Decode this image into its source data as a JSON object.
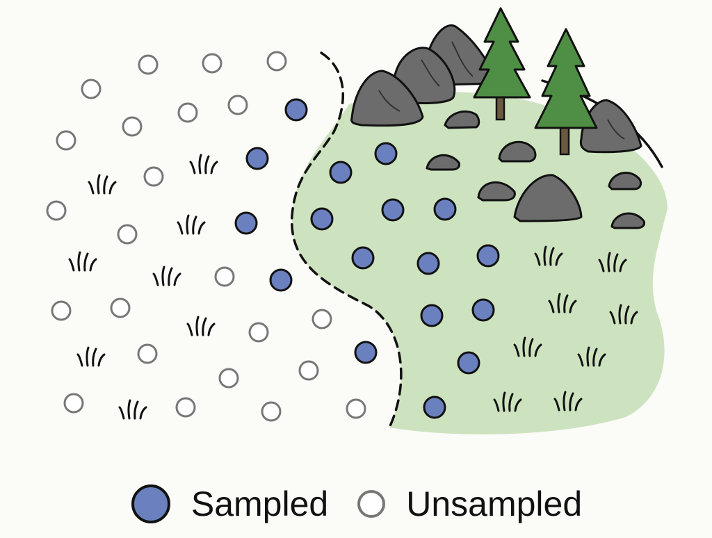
{
  "colors": {
    "background": "#fbfbf8",
    "habitat_fill": "#cde3bf",
    "sampled_fill": "#6a80bf",
    "unsampled_stroke": "#777777",
    "rock": "#6c6c6c",
    "tree": "#4f8f45",
    "trunk": "#6b5a40",
    "outline": "#111111"
  },
  "icons": {
    "sampled_marker": "filled-blue-circle",
    "unsampled_marker": "open-grey-circle",
    "rock": "rock-icon",
    "tree": "pine-tree-icon",
    "grass": "grass-tuft-icon",
    "boundary": "dashed-boundary-line"
  },
  "legend": {
    "sampled_label": "Sampled",
    "unsampled_label": "Unsampled"
  }
}
